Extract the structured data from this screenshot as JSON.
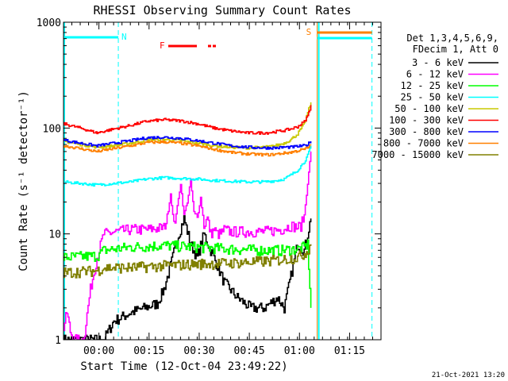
{
  "chart_data": {
    "type": "line",
    "title": "RHESSI Observing Summary Count Rates",
    "xlabel": "Start Time (12-Oct-04 23:49:22)",
    "ylabel": "Count Rate (s⁻¹ detector⁻¹)",
    "x_tick_labels": [
      "00:00",
      "00:15",
      "00:30",
      "00:45",
      "01:00",
      "01:15"
    ],
    "x_tick_minutes": [
      10.6,
      25.6,
      40.6,
      55.6,
      70.6,
      85.6
    ],
    "xlim_minutes": [
      0,
      95
    ],
    "y_scale": "log",
    "ylim": [
      1,
      1000
    ],
    "y_tick_labels": [
      "1",
      "10",
      "100",
      "1000"
    ],
    "y_tick_values": [
      1,
      10,
      100,
      1000
    ],
    "legend_header": [
      "Det 1,3,4,5,6,9,",
      "FDecim 1, Att 0"
    ],
    "legend_position": "right",
    "timestamp": "21-Oct-2021 13:20",
    "annotations": {
      "night_label": "N",
      "night_start_min": 0,
      "night_end_min": 16.4,
      "flare_label": "F",
      "saa_label": "S",
      "saa_start_min": 75.9,
      "saa_end_min": 92.3
    },
    "series": [
      {
        "name": "3 - 6 keV",
        "color": "#000000",
        "x": [
          0,
          12,
          15,
          20,
          28,
          30,
          32,
          34,
          36,
          38,
          40,
          42,
          44,
          46,
          48,
          52,
          56,
          60,
          64,
          66,
          68,
          70,
          72,
          73,
          74
        ],
        "y": [
          1,
          1,
          1.5,
          1.8,
          2.2,
          3,
          5,
          9,
          14,
          8,
          6,
          10,
          7,
          5,
          3.5,
          2.5,
          2,
          2,
          2.5,
          2,
          4,
          8,
          7,
          10,
          14
        ]
      },
      {
        "name": "6 - 12 keV",
        "color": "#ff00ff",
        "x": [
          0,
          1,
          2,
          3,
          6,
          8,
          10,
          12,
          16,
          20,
          25,
          30,
          31,
          32,
          33,
          34,
          35,
          36,
          37,
          38,
          39,
          40,
          41,
          42,
          43,
          44,
          45,
          46,
          47,
          48,
          50,
          55,
          60,
          65,
          68,
          70,
          71,
          72,
          73,
          74
        ],
        "y": [
          1.3,
          1.8,
          1.2,
          1,
          1,
          3,
          6,
          10,
          10.5,
          11,
          11,
          11.5,
          14,
          24,
          12,
          18,
          30,
          15,
          20,
          32,
          16,
          14,
          22,
          12,
          14,
          10,
          11,
          10,
          10,
          11,
          10.5,
          10.5,
          10.5,
          11,
          12,
          11.5,
          12,
          15,
          30,
          60
        ]
      },
      {
        "name": "12 - 25 keV",
        "color": "#00ff00",
        "x": [
          0,
          10,
          12,
          20,
          30,
          40,
          50,
          60,
          65,
          70,
          72,
          73,
          74
        ],
        "y": [
          6,
          6.2,
          7,
          7.5,
          7.8,
          7.5,
          7.2,
          7,
          7,
          7.2,
          7.5,
          8,
          2
        ]
      },
      {
        "name": "25 - 50 keV",
        "color": "#00ffff",
        "x": [
          0,
          5,
          10,
          15,
          20,
          25,
          30,
          35,
          40,
          45,
          50,
          55,
          60,
          62,
          64,
          66,
          68,
          70,
          72,
          73,
          74
        ],
        "y": [
          31,
          30,
          29,
          30,
          31,
          33,
          34,
          33.5,
          33,
          32,
          31.5,
          31,
          31,
          31.5,
          32,
          33,
          36,
          40,
          48,
          55,
          68
        ]
      },
      {
        "name": "50 - 100 keV",
        "color": "#c8c800",
        "x": [
          0,
          5,
          10,
          15,
          20,
          25,
          30,
          35,
          40,
          45,
          50,
          55,
          60,
          62,
          64,
          66,
          68,
          70,
          72,
          73,
          74
        ],
        "y": [
          75,
          70,
          66,
          68,
          72,
          77,
          78,
          76,
          72,
          68,
          66,
          65,
          66,
          67,
          69,
          72,
          78,
          88,
          110,
          140,
          175
        ]
      },
      {
        "name": "100 - 300 keV",
        "color": "#ff0000",
        "x": [
          0,
          5,
          10,
          15,
          20,
          25,
          30,
          35,
          40,
          45,
          50,
          55,
          60,
          62,
          64,
          66,
          68,
          70,
          72,
          73,
          74
        ],
        "y": [
          110,
          100,
          90,
          98,
          106,
          116,
          120,
          117,
          110,
          100,
          94,
          90,
          90,
          91,
          93,
          95,
          98,
          103,
          115,
          130,
          165
        ]
      },
      {
        "name": "300 - 800 keV",
        "color": "#0000ff",
        "x": [
          0,
          5,
          10,
          15,
          20,
          25,
          30,
          35,
          40,
          45,
          50,
          55,
          60,
          62,
          64,
          66,
          68,
          70,
          72,
          73,
          74
        ],
        "y": [
          77,
          72,
          68,
          72,
          76,
          81,
          82,
          80,
          76,
          72,
          68,
          66,
          65,
          65,
          65,
          66,
          66,
          67,
          68,
          70,
          75
        ]
      },
      {
        "name": "800 - 7000 keV",
        "color": "#ff8000",
        "x": [
          0,
          5,
          10,
          15,
          20,
          25,
          30,
          35,
          40,
          45,
          50,
          55,
          60,
          62,
          64,
          66,
          68,
          70,
          72,
          73,
          74
        ],
        "y": [
          68,
          64,
          60,
          64,
          68,
          73,
          74,
          72,
          68,
          63,
          59,
          57,
          56,
          56,
          57,
          58,
          59,
          61,
          63,
          65,
          70
        ]
      },
      {
        "name": "7000 - 15000 keV",
        "color": "#808000",
        "x": [
          0,
          10,
          12,
          20,
          30,
          40,
          50,
          60,
          65,
          70,
          72,
          73,
          74
        ],
        "y": [
          4.3,
          4.5,
          4.8,
          4.8,
          5,
          5.2,
          5.3,
          5.5,
          5.7,
          6,
          6.5,
          7,
          8
        ]
      }
    ]
  }
}
